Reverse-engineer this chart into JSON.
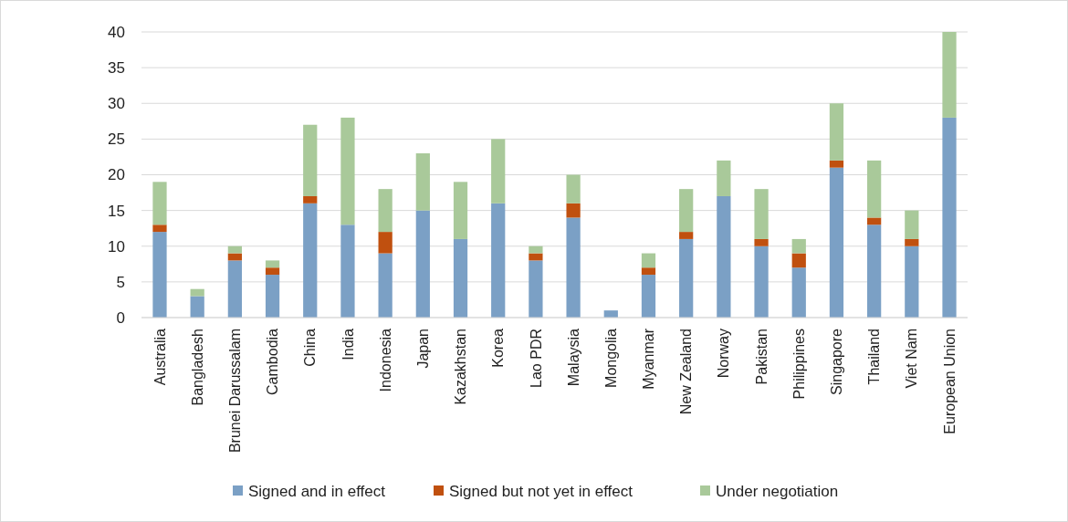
{
  "chart_data": {
    "type": "bar",
    "stacked": true,
    "categories": [
      "Australia",
      "Bangladesh",
      "Brunei Darussalam",
      "Cambodia",
      "China",
      "India",
      "Indonesia",
      "Japan",
      "Kazakhstan",
      "Korea",
      "Lao PDR",
      "Malaysia",
      "Mongolia",
      "Myanmar",
      "New Zealand",
      "Norway",
      "Pakistan",
      "Philippines",
      "Singapore",
      "Thailand",
      "Viet Nam",
      "European Union"
    ],
    "series": [
      {
        "name": "Signed and in effect",
        "color": "#7ba0c5",
        "values": [
          12,
          3,
          8,
          6,
          16,
          13,
          9,
          15,
          11,
          16,
          8,
          14,
          1,
          6,
          11,
          17,
          10,
          7,
          21,
          13,
          10,
          28
        ]
      },
      {
        "name": "Signed but not yet in effect",
        "color": "#c0500f",
        "values": [
          1,
          0,
          1,
          1,
          1,
          0,
          3,
          0,
          0,
          0,
          1,
          2,
          0,
          1,
          1,
          0,
          1,
          2,
          1,
          1,
          1,
          0
        ]
      },
      {
        "name": "Under negotiation",
        "color": "#a9c99a",
        "values": [
          6,
          1,
          1,
          1,
          10,
          15,
          6,
          8,
          8,
          9,
          1,
          4,
          0,
          2,
          6,
          5,
          7,
          2,
          8,
          8,
          4,
          12
        ]
      }
    ],
    "ylim": [
      0,
      40
    ],
    "yticks": [
      0,
      5,
      10,
      15,
      20,
      25,
      30,
      35,
      40
    ],
    "grid": "y",
    "legend": "bottom"
  }
}
